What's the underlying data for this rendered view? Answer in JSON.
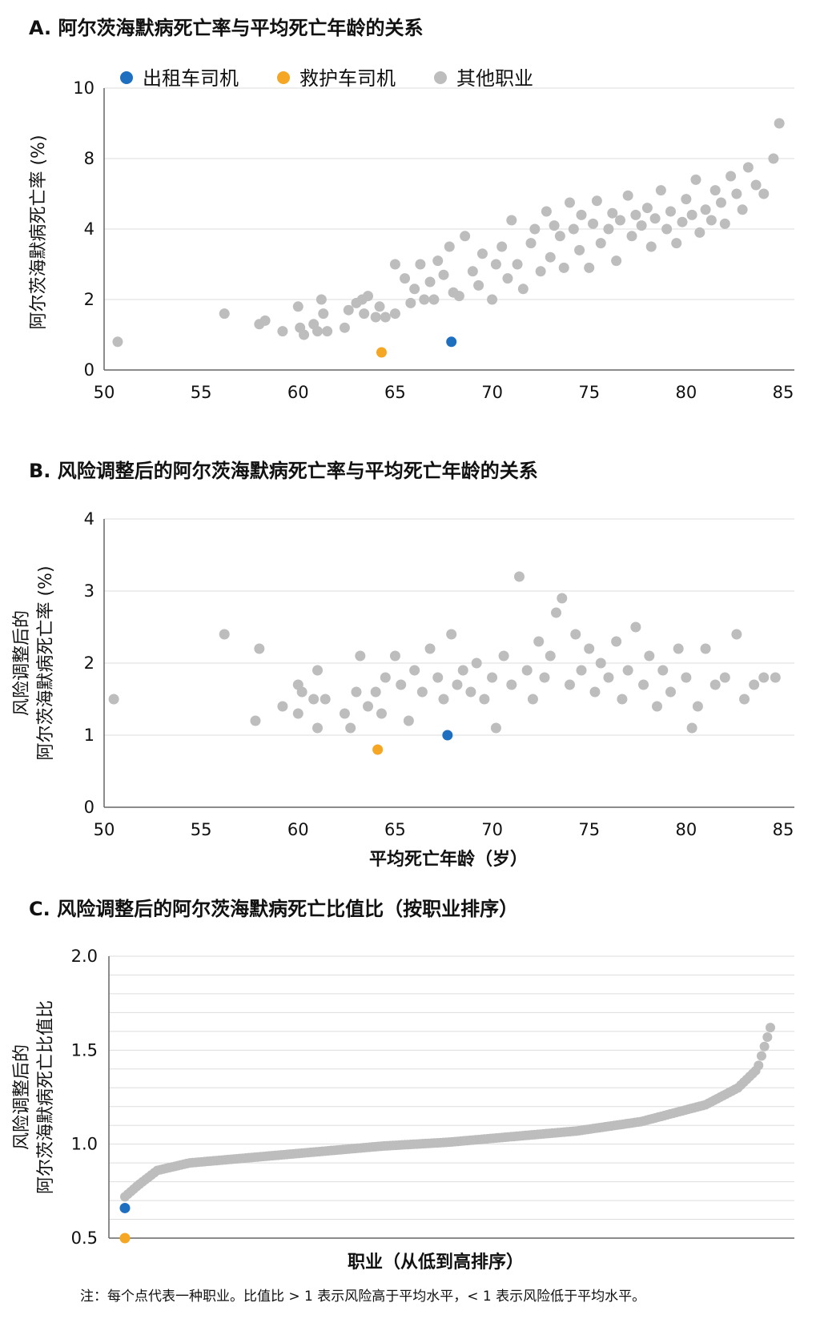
{
  "colors": {
    "taxi": "#1f6fc1",
    "ambulance": "#f5a623",
    "other": "#bdbdbd"
  },
  "note": "注：每个点代表一种职业。比值比 > 1 表示风险高于平均水平，< 1 表示风险低于平均水平。",
  "chart_data": [
    {
      "type": "scatter",
      "title": "A. 阿尔茨海默病死亡率与平均死亡年龄的关系",
      "xlabel": "",
      "ylabel": "阿尔茨海默病死亡率 (%)",
      "xlim": [
        50,
        85
      ],
      "y_ticks": [
        0,
        2,
        4,
        8,
        10
      ],
      "x_ticks": [
        50,
        55,
        60,
        65,
        70,
        75,
        80,
        85
      ],
      "legend": {
        "position": "top",
        "entries": [
          {
            "name": "出租车司机",
            "color": "#1f6fc1"
          },
          {
            "name": "救护车司机",
            "color": "#f5a623"
          },
          {
            "name": "其他职业",
            "color": "#bdbdbd"
          }
        ]
      },
      "highlights": [
        {
          "name": "出租车司机",
          "x": 67.9,
          "y": 0.8
        },
        {
          "name": "救护车司机",
          "x": 64.3,
          "y": 0.5
        }
      ],
      "series": [
        {
          "name": "其他职业",
          "points": [
            [
              50.7,
              0.8
            ],
            [
              56.2,
              1.6
            ],
            [
              58,
              1.3
            ],
            [
              58.3,
              1.4
            ],
            [
              59.2,
              1.1
            ],
            [
              60,
              1.8
            ],
            [
              60.1,
              1.2
            ],
            [
              60.3,
              1.0
            ],
            [
              60.8,
              1.3
            ],
            [
              61,
              1.1
            ],
            [
              61.3,
              1.6
            ],
            [
              61.2,
              2.0
            ],
            [
              61.5,
              1.1
            ],
            [
              62.4,
              1.2
            ],
            [
              62.6,
              1.7
            ],
            [
              63,
              1.9
            ],
            [
              63.3,
              2.0
            ],
            [
              63.4,
              1.6
            ],
            [
              63.6,
              2.1
            ],
            [
              64,
              1.5
            ],
            [
              64.2,
              1.8
            ],
            [
              64.5,
              1.5
            ],
            [
              65,
              1.6
            ],
            [
              65,
              3.0
            ],
            [
              65.5,
              2.6
            ],
            [
              65.8,
              1.9
            ],
            [
              66,
              2.3
            ],
            [
              66.3,
              3.0
            ],
            [
              66.5,
              2.0
            ],
            [
              66.8,
              2.5
            ],
            [
              67,
              2.0
            ],
            [
              67.2,
              3.1
            ],
            [
              67.5,
              2.7
            ],
            [
              67.8,
              3.5
            ],
            [
              68,
              2.2
            ],
            [
              68.3,
              2.1
            ],
            [
              68.6,
              3.8
            ],
            [
              69,
              2.8
            ],
            [
              69.3,
              2.4
            ],
            [
              69.5,
              3.3
            ],
            [
              70,
              2.0
            ],
            [
              70.2,
              3.0
            ],
            [
              70.5,
              3.5
            ],
            [
              70.8,
              2.6
            ],
            [
              71,
              4.5
            ],
            [
              71.3,
              3.0
            ],
            [
              71.6,
              2.3
            ],
            [
              72,
              3.6
            ],
            [
              72.2,
              4.0
            ],
            [
              72.5,
              2.8
            ],
            [
              72.8,
              5.0
            ],
            [
              73,
              3.2
            ],
            [
              73.2,
              4.2
            ],
            [
              73.5,
              3.8
            ],
            [
              73.7,
              2.9
            ],
            [
              74,
              5.5
            ],
            [
              74.2,
              4.0
            ],
            [
              74.5,
              3.4
            ],
            [
              74.6,
              4.8
            ],
            [
              75,
              2.9
            ],
            [
              75.2,
              4.3
            ],
            [
              75.4,
              5.6
            ],
            [
              75.6,
              3.6
            ],
            [
              76,
              4.0
            ],
            [
              76.2,
              4.9
            ],
            [
              76.4,
              3.1
            ],
            [
              76.6,
              4.5
            ],
            [
              77,
              5.9
            ],
            [
              77.2,
              3.8
            ],
            [
              77.4,
              4.8
            ],
            [
              77.7,
              4.2
            ],
            [
              78,
              5.2
            ],
            [
              78.2,
              3.5
            ],
            [
              78.4,
              4.6
            ],
            [
              78.7,
              6.2
            ],
            [
              79,
              4.0
            ],
            [
              79.2,
              5.0
            ],
            [
              79.5,
              3.6
            ],
            [
              79.8,
              4.4
            ],
            [
              80,
              5.7
            ],
            [
              80.3,
              4.8
            ],
            [
              80.5,
              6.8
            ],
            [
              80.7,
              3.9
            ],
            [
              81,
              5.1
            ],
            [
              81.3,
              4.5
            ],
            [
              81.5,
              6.2
            ],
            [
              81.8,
              5.5
            ],
            [
              82,
              4.3
            ],
            [
              82.3,
              7.0
            ],
            [
              82.6,
              6.0
            ],
            [
              82.9,
              5.1
            ],
            [
              83.2,
              7.5
            ],
            [
              83.6,
              6.5
            ],
            [
              84,
              6.0
            ],
            [
              84.5,
              8.0
            ],
            [
              84.8,
              9.0
            ]
          ]
        }
      ]
    },
    {
      "type": "scatter",
      "title": "B. 风险调整后的阿尔茨海默病死亡率与平均死亡年龄的关系",
      "xlabel": "平均死亡年龄（岁）",
      "ylabel_line1": "风险调整后的",
      "ylabel_line2": "阿尔茨海默病死亡率 (%)",
      "xlim": [
        50,
        85
      ],
      "ylim": [
        0,
        4
      ],
      "y_ticks": [
        0,
        1,
        2,
        3,
        4
      ],
      "x_ticks": [
        50,
        55,
        60,
        65,
        70,
        75,
        80,
        85
      ],
      "highlights": [
        {
          "name": "出租车司机",
          "x": 67.7,
          "y": 1.0
        },
        {
          "name": "救护车司机",
          "x": 64.1,
          "y": 0.8
        }
      ],
      "series": [
        {
          "name": "其他职业",
          "points": [
            [
              50.5,
              1.5
            ],
            [
              56.2,
              2.4
            ],
            [
              58,
              2.2
            ],
            [
              57.8,
              1.2
            ],
            [
              59.2,
              1.4
            ],
            [
              60,
              1.7
            ],
            [
              60.2,
              1.6
            ],
            [
              60,
              1.3
            ],
            [
              60.8,
              1.5
            ],
            [
              61,
              1.9
            ],
            [
              61,
              1.1
            ],
            [
              61.4,
              1.5
            ],
            [
              62.4,
              1.3
            ],
            [
              62.7,
              1.1
            ],
            [
              63,
              1.6
            ],
            [
              63.2,
              2.1
            ],
            [
              63.6,
              1.4
            ],
            [
              64,
              1.6
            ],
            [
              64.3,
              1.3
            ],
            [
              64.5,
              1.8
            ],
            [
              65,
              2.1
            ],
            [
              65.3,
              1.7
            ],
            [
              65.7,
              1.2
            ],
            [
              66,
              1.9
            ],
            [
              66.4,
              1.6
            ],
            [
              66.8,
              2.2
            ],
            [
              67.2,
              1.8
            ],
            [
              67.5,
              1.5
            ],
            [
              67.9,
              2.4
            ],
            [
              68.2,
              1.7
            ],
            [
              68.5,
              1.9
            ],
            [
              68.9,
              1.6
            ],
            [
              69.2,
              2.0
            ],
            [
              69.6,
              1.5
            ],
            [
              70,
              1.8
            ],
            [
              70.2,
              1.1
            ],
            [
              70.6,
              2.1
            ],
            [
              71,
              1.7
            ],
            [
              71.4,
              3.2
            ],
            [
              71.8,
              1.9
            ],
            [
              72.1,
              1.5
            ],
            [
              72.4,
              2.3
            ],
            [
              72.7,
              1.8
            ],
            [
              73,
              2.1
            ],
            [
              73.3,
              2.7
            ],
            [
              73.6,
              2.9
            ],
            [
              74,
              1.7
            ],
            [
              74.3,
              2.4
            ],
            [
              74.6,
              1.9
            ],
            [
              75,
              2.2
            ],
            [
              75.3,
              1.6
            ],
            [
              75.6,
              2.0
            ],
            [
              76,
              1.8
            ],
            [
              76.4,
              2.3
            ],
            [
              76.7,
              1.5
            ],
            [
              77,
              1.9
            ],
            [
              77.4,
              2.5
            ],
            [
              77.8,
              1.7
            ],
            [
              78.1,
              2.1
            ],
            [
              78.5,
              1.4
            ],
            [
              78.8,
              1.9
            ],
            [
              79.2,
              1.6
            ],
            [
              79.6,
              2.2
            ],
            [
              80,
              1.8
            ],
            [
              80.3,
              1.1
            ],
            [
              80.6,
              1.4
            ],
            [
              81,
              2.2
            ],
            [
              81.5,
              1.7
            ],
            [
              82,
              1.8
            ],
            [
              82.6,
              2.4
            ],
            [
              83,
              1.5
            ],
            [
              83.5,
              1.7
            ],
            [
              84,
              1.8
            ],
            [
              84.6,
              1.8
            ]
          ]
        }
      ]
    },
    {
      "type": "scatter",
      "title": "C. 风险调整后的阿尔茨海默病死亡比值比（按职业排序）",
      "xlabel": "职业（从低到高排序）",
      "ylabel_line1": "风险调整后的",
      "ylabel_line2": "阿尔茨海默病死亡比值比",
      "ylim": [
        0.5,
        2.0
      ],
      "y_ticks": [
        "0.5",
        "1.0",
        "1.5",
        "2.0"
      ],
      "highlights": [
        {
          "name": "出租车司机",
          "value": 0.66
        },
        {
          "name": "救护车司机",
          "value": 0.5
        }
      ],
      "n_occupations": 220,
      "curve_keypoints": [
        [
          0,
          0.72
        ],
        [
          0.02,
          0.78
        ],
        [
          0.05,
          0.86
        ],
        [
          0.1,
          0.9
        ],
        [
          0.2,
          0.93
        ],
        [
          0.3,
          0.96
        ],
        [
          0.4,
          0.99
        ],
        [
          0.5,
          1.01
        ],
        [
          0.6,
          1.04
        ],
        [
          0.7,
          1.07
        ],
        [
          0.8,
          1.12
        ],
        [
          0.9,
          1.21
        ],
        [
          0.95,
          1.3
        ],
        [
          0.98,
          1.4
        ],
        [
          1.0,
          1.62
        ]
      ]
    }
  ]
}
